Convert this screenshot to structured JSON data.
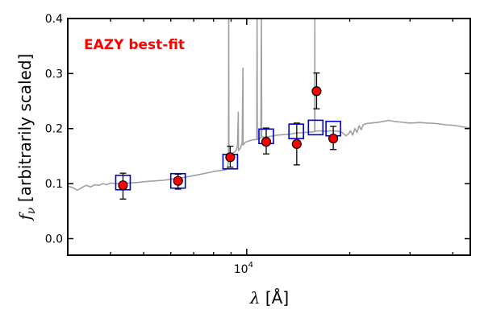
{
  "chart_data": {
    "type": "scatter",
    "title": "",
    "annotation": "EAZY best-fit",
    "annotation_color": "#ff0000",
    "xlabel": "λ [Å]",
    "xlabel_symbol": "λ",
    "xlabel_unit": "[Å]",
    "ylabel": "fν [arbitrarily scaled]",
    "ylabel_symbol": "f",
    "ylabel_subscript": "ν",
    "ylabel_text": "[arbitrarily scaled]",
    "x_scale": "log",
    "xlim": [
      3000,
      45000
    ],
    "ylim": [
      -0.03,
      0.4
    ],
    "yticks": [
      {
        "value": 0.0,
        "label": "0.0"
      },
      {
        "value": 0.1,
        "label": "0.1"
      },
      {
        "value": 0.2,
        "label": "0.2"
      },
      {
        "value": 0.3,
        "label": "0.3"
      },
      {
        "value": 0.4,
        "label": "0.4"
      }
    ],
    "xticks_major": [
      {
        "value": 10000,
        "base": "10",
        "exp": "4"
      }
    ],
    "xticks_minor": [
      4000,
      5000,
      6000,
      7000,
      8000,
      9000,
      20000,
      30000,
      40000
    ],
    "grid": false,
    "colors": {
      "observed_fill": "#ff0000",
      "observed_edge": "#000000",
      "model_box": "#0000cc",
      "template": "#a0a0a0"
    },
    "observed_photometry": [
      {
        "x": 4350,
        "y": 0.097,
        "err_low": 0.025,
        "err_high": 0.022
      },
      {
        "x": 6300,
        "y": 0.105,
        "err_low": 0.015,
        "err_high": 0.012
      },
      {
        "x": 8950,
        "y": 0.148,
        "err_low": 0.018,
        "err_high": 0.02
      },
      {
        "x": 11400,
        "y": 0.176,
        "err_low": 0.022,
        "err_high": 0.025
      },
      {
        "x": 14000,
        "y": 0.172,
        "err_low": 0.038,
        "err_high": 0.038
      },
      {
        "x": 16000,
        "y": 0.268,
        "err_low": 0.032,
        "err_high": 0.033
      },
      {
        "x": 17900,
        "y": 0.182,
        "err_low": 0.02,
        "err_high": 0.022
      }
    ],
    "model_photometry": [
      {
        "x": 4350,
        "y": 0.102
      },
      {
        "x": 6300,
        "y": 0.105
      },
      {
        "x": 8950,
        "y": 0.14
      },
      {
        "x": 11400,
        "y": 0.186
      },
      {
        "x": 13950,
        "y": 0.195
      },
      {
        "x": 15900,
        "y": 0.202
      },
      {
        "x": 17900,
        "y": 0.2
      }
    ],
    "template_sed": [
      [
        3000,
        0.095
      ],
      [
        3100,
        0.093
      ],
      [
        3200,
        0.088
      ],
      [
        3300,
        0.093
      ],
      [
        3400,
        0.097
      ],
      [
        3500,
        0.094
      ],
      [
        3600,
        0.098
      ],
      [
        3700,
        0.097
      ],
      [
        3800,
        0.1
      ],
      [
        3900,
        0.098
      ],
      [
        4000,
        0.101
      ],
      [
        4200,
        0.1
      ],
      [
        4500,
        0.101
      ],
      [
        4800,
        0.102
      ],
      [
        5100,
        0.104
      ],
      [
        5400,
        0.105
      ],
      [
        5700,
        0.106
      ],
      [
        6000,
        0.108
      ],
      [
        6400,
        0.11
      ],
      [
        6800,
        0.113
      ],
      [
        7200,
        0.116
      ],
      [
        7600,
        0.119
      ],
      [
        8000,
        0.122
      ],
      [
        8400,
        0.124
      ],
      [
        8700,
        0.125
      ],
      [
        8800,
        0.13
      ],
      [
        8850,
        0.145
      ],
      [
        8860,
        0.4
      ],
      [
        8870,
        0.15
      ],
      [
        8950,
        0.15
      ],
      [
        9100,
        0.155
      ],
      [
        9300,
        0.16
      ],
      [
        9400,
        0.168
      ],
      [
        9450,
        0.23
      ],
      [
        9460,
        0.16
      ],
      [
        9600,
        0.165
      ],
      [
        9700,
        0.175
      ],
      [
        9750,
        0.31
      ],
      [
        9760,
        0.17
      ],
      [
        9900,
        0.175
      ],
      [
        10200,
        0.178
      ],
      [
        10500,
        0.18
      ],
      [
        10700,
        0.18
      ],
      [
        10720,
        0.4
      ],
      [
        10740,
        0.18
      ],
      [
        10900,
        0.182
      ],
      [
        11000,
        0.183
      ],
      [
        11020,
        0.3
      ],
      [
        11040,
        0.4
      ],
      [
        11060,
        0.184
      ],
      [
        11300,
        0.185
      ],
      [
        11800,
        0.186
      ],
      [
        12200,
        0.188
      ],
      [
        12800,
        0.189
      ],
      [
        13400,
        0.19
      ],
      [
        14000,
        0.192
      ],
      [
        14800,
        0.193
      ],
      [
        15600,
        0.194
      ],
      [
        15800,
        0.195
      ],
      [
        15810,
        0.4
      ],
      [
        15820,
        0.195
      ],
      [
        16300,
        0.196
      ],
      [
        17000,
        0.195
      ],
      [
        17800,
        0.196
      ],
      [
        18500,
        0.195
      ],
      [
        19000,
        0.193
      ],
      [
        19500,
        0.187
      ],
      [
        19800,
        0.19
      ],
      [
        20100,
        0.196
      ],
      [
        20400,
        0.188
      ],
      [
        20700,
        0.2
      ],
      [
        21000,
        0.193
      ],
      [
        21300,
        0.205
      ],
      [
        21600,
        0.198
      ],
      [
        21900,
        0.207
      ],
      [
        22300,
        0.209
      ],
      [
        23000,
        0.21
      ],
      [
        24000,
        0.211
      ],
      [
        25000,
        0.213
      ],
      [
        26000,
        0.215
      ],
      [
        27000,
        0.213
      ],
      [
        28000,
        0.212
      ],
      [
        30000,
        0.21
      ],
      [
        32000,
        0.211
      ],
      [
        34000,
        0.21
      ],
      [
        36000,
        0.209
      ],
      [
        38000,
        0.207
      ],
      [
        40000,
        0.206
      ],
      [
        42000,
        0.204
      ],
      [
        45000,
        0.201
      ]
    ]
  }
}
